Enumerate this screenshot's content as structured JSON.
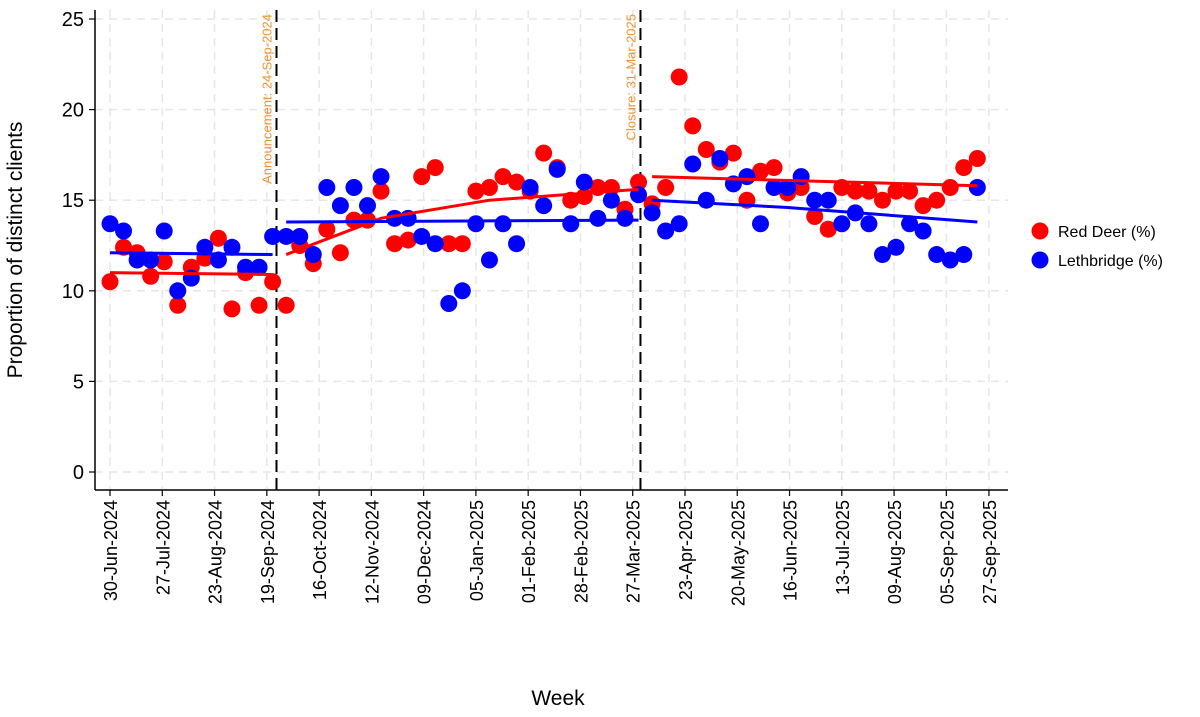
{
  "chart_data": {
    "type": "scatter",
    "title": "",
    "xlabel": "Week",
    "ylabel": "Proportion of distinct clients",
    "ylim": [
      0,
      25
    ],
    "yticks": [
      "0",
      "5",
      "10",
      "15",
      "20",
      "25"
    ],
    "xticks": [
      "30-Jun-2024",
      "27-Jul-2024",
      "23-Aug-2024",
      "19-Sep-2024",
      "16-Oct-2024",
      "12-Nov-2024",
      "09-Dec-2024",
      "05-Jan-2025",
      "01-Feb-2025",
      "28-Feb-2025",
      "27-Mar-2025",
      "23-Apr-2025",
      "20-May-2025",
      "16-Jun-2025",
      "13-Jul-2025",
      "09-Aug-2025",
      "05-Sep-2025",
      "27-Sep-2025"
    ],
    "grid": true,
    "legend_position": "right",
    "x": [
      "2024-06-30",
      "2024-07-07",
      "2024-07-14",
      "2024-07-21",
      "2024-07-28",
      "2024-08-04",
      "2024-08-11",
      "2024-08-18",
      "2024-08-25",
      "2024-09-01",
      "2024-09-08",
      "2024-09-15",
      "2024-09-22",
      "2024-09-29",
      "2024-10-06",
      "2024-10-13",
      "2024-10-20",
      "2024-10-27",
      "2024-11-03",
      "2024-11-10",
      "2024-11-17",
      "2024-11-24",
      "2024-12-01",
      "2024-12-08",
      "2024-12-15",
      "2024-12-22",
      "2024-12-29",
      "2025-01-05",
      "2025-01-12",
      "2025-01-19",
      "2025-01-26",
      "2025-02-02",
      "2025-02-09",
      "2025-02-16",
      "2025-02-23",
      "2025-03-02",
      "2025-03-09",
      "2025-03-16",
      "2025-03-23",
      "2025-03-30",
      "2025-04-06",
      "2025-04-13",
      "2025-04-20",
      "2025-04-27",
      "2025-05-04",
      "2025-05-11",
      "2025-05-18",
      "2025-05-25",
      "2025-06-01",
      "2025-06-08",
      "2025-06-15",
      "2025-06-22",
      "2025-06-29",
      "2025-07-06",
      "2025-07-13",
      "2025-07-20",
      "2025-07-27",
      "2025-08-03",
      "2025-08-10",
      "2025-08-17",
      "2025-08-24",
      "2025-08-31",
      "2025-09-07",
      "2025-09-14",
      "2025-09-21"
    ],
    "series": [
      {
        "name": "Red Deer (%)",
        "color": "#ff0000",
        "values": [
          10.5,
          12.4,
          12.1,
          10.8,
          11.6,
          9.2,
          11.3,
          11.8,
          12.9,
          9.0,
          11.0,
          9.2,
          10.5,
          9.2,
          12.5,
          11.5,
          13.4,
          12.1,
          13.9,
          13.9,
          15.5,
          12.6,
          12.8,
          16.3,
          16.8,
          12.6,
          12.6,
          15.5,
          15.7,
          16.3,
          16.0,
          15.5,
          17.6,
          16.8,
          15.0,
          15.2,
          15.7,
          15.7,
          14.5,
          16.0,
          14.8,
          15.7,
          21.8,
          19.1,
          17.8,
          17.1,
          17.6,
          15.0,
          16.6,
          16.8,
          15.4,
          15.7,
          14.1,
          13.4,
          15.7,
          15.5,
          15.5,
          15.0,
          15.5,
          15.5,
          14.7,
          15.0,
          15.7,
          16.8,
          17.3
        ],
        "fit": [
          {
            "x": [
              "2024-06-30",
              "2024-09-22"
            ],
            "y": [
              11.0,
              10.9
            ]
          },
          {
            "x": [
              "2024-09-29",
              "2024-11-17",
              "2025-01-12",
              "2025-03-30"
            ],
            "y": [
              12.0,
              14.0,
              15.0,
              15.6
            ]
          },
          {
            "x": [
              "2025-04-06",
              "2025-09-21"
            ],
            "y": [
              16.3,
              15.8
            ]
          }
        ]
      },
      {
        "name": "Lethbridge (%)",
        "color": "#0000ff",
        "values": [
          13.7,
          13.3,
          11.7,
          11.7,
          13.3,
          10.0,
          10.7,
          12.4,
          11.7,
          12.4,
          11.3,
          11.3,
          13.0,
          13.0,
          13.0,
          12.0,
          15.7,
          14.7,
          15.7,
          14.7,
          16.3,
          14.0,
          14.0,
          13.0,
          12.6,
          9.3,
          10.0,
          13.7,
          11.7,
          13.7,
          12.6,
          15.7,
          14.7,
          16.7,
          13.7,
          16.0,
          14.0,
          15.0,
          14.0,
          15.3,
          14.3,
          13.3,
          13.7,
          17.0,
          15.0,
          17.3,
          15.9,
          16.3,
          13.7,
          15.7,
          15.7,
          16.3,
          15.0,
          15.0,
          13.7,
          14.3,
          13.7,
          12.0,
          12.4,
          13.7,
          13.3,
          12.0,
          11.7,
          12.0,
          15.7
        ],
        "fit": [
          {
            "x": [
              "2024-06-30",
              "2024-09-22"
            ],
            "y": [
              12.1,
              12.0
            ]
          },
          {
            "x": [
              "2024-09-29",
              "2025-03-30"
            ],
            "y": [
              13.8,
              13.9
            ]
          },
          {
            "x": [
              "2025-04-06",
              "2025-06-15",
              "2025-09-21"
            ],
            "y": [
              15.0,
              14.6,
              13.8
            ]
          }
        ]
      }
    ],
    "annotations": [
      {
        "label": "Announcement: 24-Sep-2024",
        "date": "2024-09-24",
        "color": "#f0922e"
      },
      {
        "label": "Closure: 31-Mar-2025",
        "date": "2025-03-31",
        "color": "#f0922e"
      }
    ]
  }
}
